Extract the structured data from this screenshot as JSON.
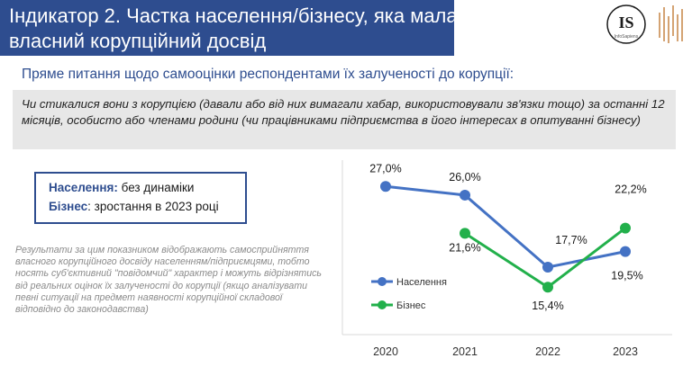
{
  "header": {
    "title_line1": "Індикатор 2. Частка населення/бізнесу, яка мала",
    "title_line2": "власний корупційний досвід",
    "logo_text": "IS",
    "logo_subtext": "InfoSapiens"
  },
  "subtitle": "Пряме питання щодо самооцінки респондентами їх залученості до корупції:",
  "question": "Чи стикалися вони з корупцією (давали або від них вимагали хабар, використовували зв'язки тощо) за останні 12 місяців, особисто або членами родини (чи працівниками підприємства в його інтересах в опитуванні бізнесу)",
  "summary": {
    "population_label": "Населення:",
    "population_text": " без динаміки",
    "business_label": "Бізнес",
    "business_text": ": зростання в 2023 році"
  },
  "note": "Результати за цим показником відображають самосприйняття власного корупційного досвіду населенням/підприємцями, тобто носять суб'єктивний \"повідомчий\" характер і можуть відрізнятись від реальних оцінок їх залученості до корупції (якщо аналізувати певні ситуації на предмет наявності корупційної складової відповідно до законодавства)",
  "chart_data": {
    "type": "line",
    "categories": [
      "2020",
      "2021",
      "2022",
      "2023"
    ],
    "series": [
      {
        "name": "Населення",
        "values": [
          27.0,
          26.0,
          17.7,
          19.5
        ],
        "labels": [
          "27,0%",
          "26,0%",
          "17,7%",
          "19,5%"
        ],
        "color": "#4472c4"
      },
      {
        "name": "Бізнес",
        "values": [
          null,
          21.6,
          15.4,
          22.2
        ],
        "labels": [
          null,
          "21,6%",
          "15,4%",
          "22,2%"
        ],
        "color": "#22b04b"
      }
    ],
    "ylim": [
      12,
      29
    ],
    "grid": false,
    "legend_position": "left-center"
  },
  "colors": {
    "brand_blue": "#2e4d8f",
    "population": "#4472c4",
    "business": "#22b04b"
  }
}
